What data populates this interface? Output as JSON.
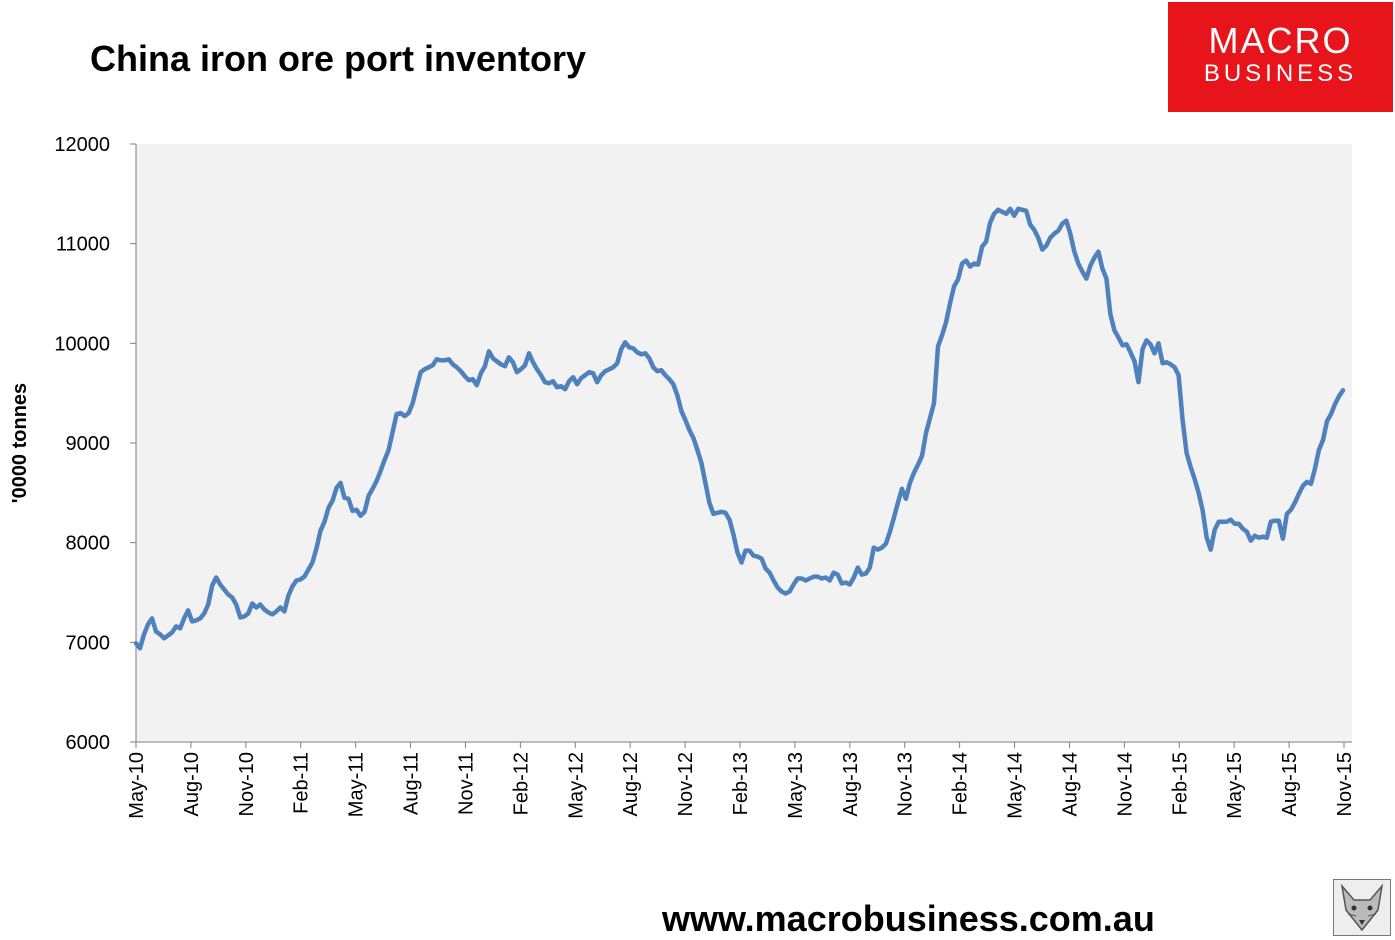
{
  "header": {
    "title": "China iron ore port inventory"
  },
  "logo": {
    "line1": "MACRO",
    "line2": "BUSINESS"
  },
  "footer": {
    "url": "www.macrobusiness.com.au"
  },
  "colors": {
    "line": "#4f81bd",
    "plot_bg": "#f2f2f2",
    "logo_bg": "#e8141b"
  },
  "icons": {
    "footer_logo": "fox-icon"
  },
  "chart_data": {
    "type": "line",
    "title": "China iron ore port inventory",
    "xlabel": "",
    "ylabel": "'0000 tonnes",
    "ylim": [
      6000,
      12000
    ],
    "yticks": [
      6000,
      7000,
      8000,
      9000,
      10000,
      11000,
      12000
    ],
    "xtick_labels": [
      "May-10",
      "Aug-10",
      "Nov-10",
      "Feb-11",
      "May-11",
      "Aug-11",
      "Nov-11",
      "Feb-12",
      "May-12",
      "Aug-12",
      "Nov-12",
      "Feb-13",
      "May-13",
      "Aug-13",
      "Nov-13",
      "Feb-14",
      "May-14",
      "Aug-14",
      "Nov-14",
      "Feb-15",
      "May-15",
      "Aug-15",
      "Nov-15"
    ],
    "grid": false,
    "series": [
      {
        "name": "",
        "x_start": "May-10",
        "frequency": "weekly",
        "values": [
          6990,
          6940,
          7080,
          7180,
          7240,
          7110,
          7080,
          7040,
          7070,
          7100,
          7160,
          7140,
          7240,
          7320,
          7210,
          7220,
          7240,
          7290,
          7380,
          7570,
          7650,
          7580,
          7530,
          7480,
          7450,
          7380,
          7250,
          7260,
          7290,
          7390,
          7350,
          7380,
          7330,
          7300,
          7280,
          7310,
          7350,
          7310,
          7470,
          7560,
          7620,
          7630,
          7660,
          7730,
          7800,
          7940,
          8120,
          8210,
          8350,
          8420,
          8550,
          8600,
          8450,
          8440,
          8320,
          8330,
          8270,
          8310,
          8470,
          8540,
          8620,
          8720,
          8830,
          8930,
          9110,
          9290,
          9300,
          9270,
          9300,
          9400,
          9560,
          9710,
          9740,
          9760,
          9780,
          9840,
          9830,
          9830,
          9840,
          9790,
          9760,
          9720,
          9670,
          9630,
          9640,
          9580,
          9700,
          9770,
          9920,
          9850,
          9820,
          9790,
          9770,
          9860,
          9810,
          9710,
          9740,
          9780,
          9900,
          9810,
          9740,
          9680,
          9610,
          9600,
          9620,
          9560,
          9570,
          9540,
          9620,
          9660,
          9590,
          9650,
          9680,
          9710,
          9700,
          9610,
          9680,
          9720,
          9740,
          9760,
          9800,
          9940,
          10010,
          9960,
          9950,
          9910,
          9890,
          9900,
          9850,
          9760,
          9720,
          9730,
          9680,
          9640,
          9590,
          9480,
          9320,
          9230,
          9130,
          9050,
          8930,
          8800,
          8600,
          8400,
          8290,
          8300,
          8310,
          8300,
          8230,
          8080,
          7900,
          7800,
          7920,
          7920,
          7870,
          7860,
          7840,
          7740,
          7700,
          7620,
          7550,
          7510,
          7490,
          7510,
          7580,
          7640,
          7640,
          7620,
          7640,
          7660,
          7660,
          7640,
          7650,
          7620,
          7700,
          7680,
          7590,
          7600,
          7580,
          7650,
          7750,
          7680,
          7690,
          7750,
          7950,
          7930,
          7950,
          7990,
          8110,
          8250,
          8400,
          8540,
          8440,
          8600,
          8700,
          8780,
          8870,
          9100,
          9250,
          9400,
          9970,
          10080,
          10210,
          10400,
          10570,
          10640,
          10800,
          10830,
          10770,
          10800,
          10790,
          10970,
          11020,
          11210,
          11300,
          11340,
          11320,
          11300,
          11350,
          11280,
          11350,
          11340,
          11330,
          11190,
          11140,
          11060,
          10940,
          10980,
          11060,
          11100,
          11130,
          11200,
          11230,
          11100,
          10920,
          10800,
          10720,
          10650,
          10780,
          10860,
          10920,
          10750,
          10650,
          10290,
          10130,
          10060,
          9980,
          9990,
          9910,
          9820,
          9610,
          9940,
          10030,
          9990,
          9900,
          10000,
          9800,
          9810,
          9790,
          9760,
          9680,
          9230,
          8900,
          8760,
          8640,
          8500,
          8320,
          8050,
          7930,
          8130,
          8210,
          8210,
          8210,
          8230,
          8190,
          8190,
          8140,
          8110,
          8020,
          8070,
          8050,
          8060,
          8050,
          8210,
          8220,
          8220,
          8040,
          8290,
          8330,
          8400,
          8490,
          8570,
          8610,
          8590,
          8740,
          8930,
          9030,
          9220,
          9290,
          9390,
          9470,
          9530
        ]
      }
    ]
  }
}
